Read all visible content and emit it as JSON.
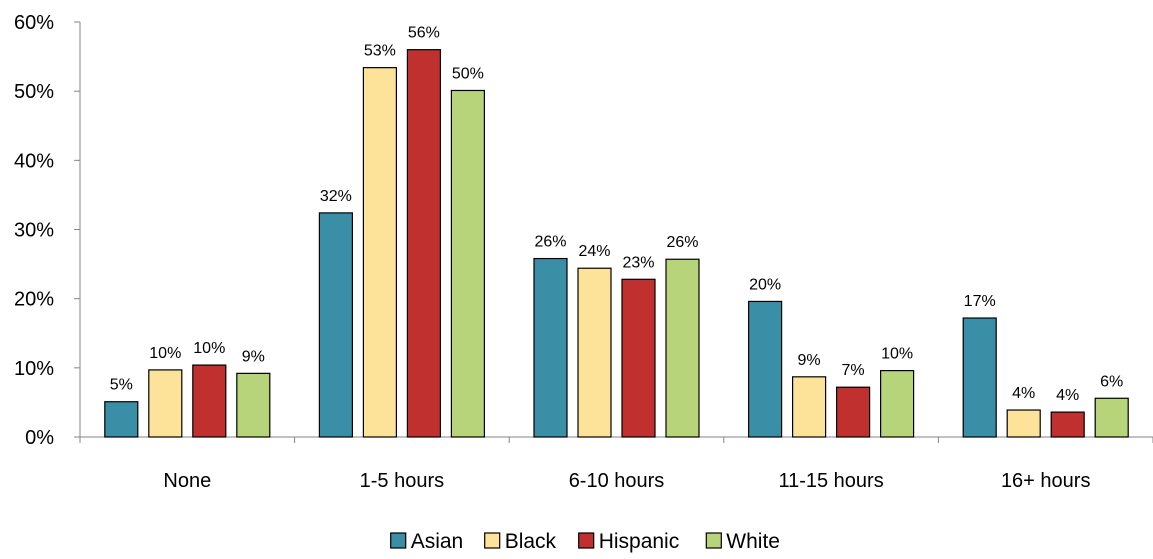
{
  "chart_data": {
    "type": "bar",
    "categories": [
      "None",
      "1-5 hours",
      "6-10 hours",
      "11-15 hours",
      "16+ hours"
    ],
    "series": [
      {
        "name": "Asian",
        "color": "#3A8EA5",
        "values": [
          5,
          32,
          26,
          20,
          17
        ]
      },
      {
        "name": "Black",
        "color": "#FDE29A",
        "values": [
          10,
          53,
          24,
          9,
          4
        ]
      },
      {
        "name": "Hispanic",
        "color": "#C0302F",
        "values": [
          10,
          56,
          23,
          7,
          4
        ]
      },
      {
        "name": "White",
        "color": "#B8D47A",
        "values": [
          9,
          50,
          26,
          10,
          6
        ]
      }
    ],
    "bar_heights": [
      [
        5.1,
        32.4,
        25.8,
        19.6,
        17.2
      ],
      [
        9.7,
        53.4,
        24.4,
        8.7,
        3.9
      ],
      [
        10.4,
        56.0,
        22.8,
        7.2,
        3.6
      ],
      [
        9.2,
        50.1,
        25.7,
        9.6,
        5.6
      ]
    ],
    "y_ticks": [
      "0%",
      "10%",
      "20%",
      "30%",
      "40%",
      "50%",
      "60%"
    ],
    "ylim": [
      0,
      60
    ],
    "value_suffix": "%",
    "title": "",
    "xlabel": "",
    "ylabel": "",
    "grid": false,
    "legend_position": "bottom"
  }
}
